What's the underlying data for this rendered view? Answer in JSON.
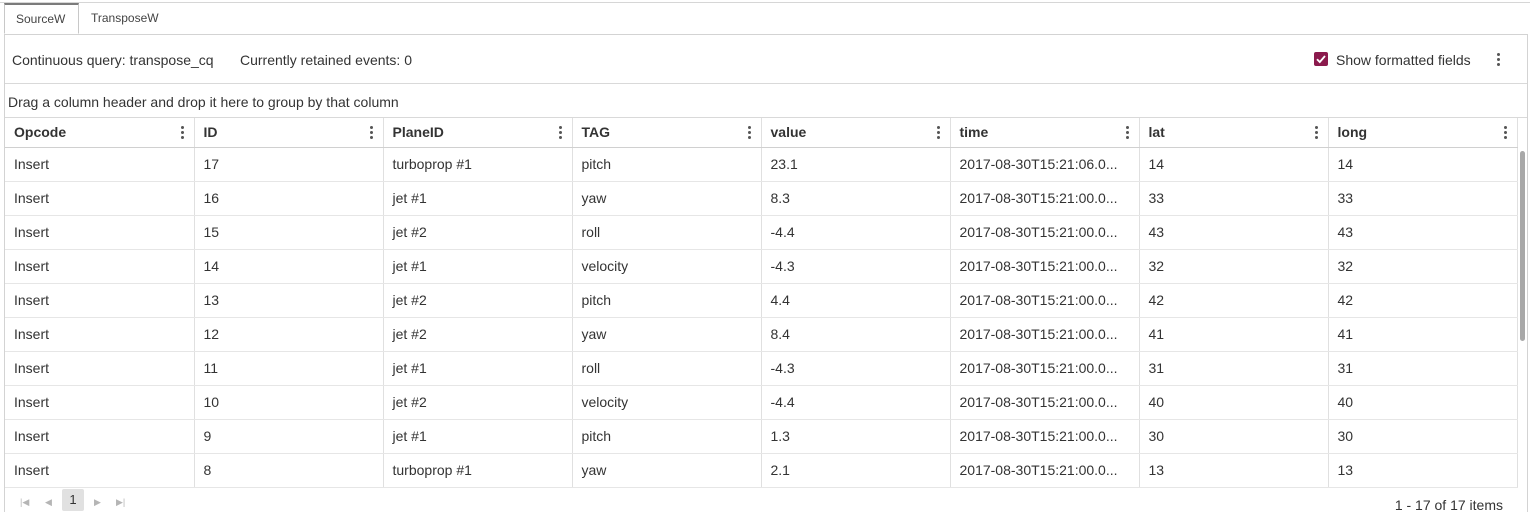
{
  "tabs": [
    {
      "label": "SourceW",
      "active": true
    },
    {
      "label": "TransposeW",
      "active": false
    }
  ],
  "toolbar": {
    "continuous_query": "Continuous query: transpose_cq",
    "retained_events": "Currently retained events: 0",
    "show_formatted_label": "Show formatted fields",
    "show_formatted_checked": true
  },
  "group_hint": "Drag a column header and drop it here to group by that column",
  "columns": [
    "Opcode",
    "ID",
    "PlaneID",
    "TAG",
    "value",
    "time",
    "lat",
    "long"
  ],
  "rows": [
    [
      "Insert",
      "17",
      "turboprop #1",
      "pitch",
      "23.1",
      "2017-08-30T15:21:06.0...",
      "14",
      "14"
    ],
    [
      "Insert",
      "16",
      "jet #1",
      "yaw",
      "8.3",
      "2017-08-30T15:21:00.0...",
      "33",
      "33"
    ],
    [
      "Insert",
      "15",
      "jet #2",
      "roll",
      "-4.4",
      "2017-08-30T15:21:00.0...",
      "43",
      "43"
    ],
    [
      "Insert",
      "14",
      "jet #1",
      "velocity",
      "-4.3",
      "2017-08-30T15:21:00.0...",
      "32",
      "32"
    ],
    [
      "Insert",
      "13",
      "jet #2",
      "pitch",
      "4.4",
      "2017-08-30T15:21:00.0...",
      "42",
      "42"
    ],
    [
      "Insert",
      "12",
      "jet #2",
      "yaw",
      "8.4",
      "2017-08-30T15:21:00.0...",
      "41",
      "41"
    ],
    [
      "Insert",
      "11",
      "jet #1",
      "roll",
      "-4.3",
      "2017-08-30T15:21:00.0...",
      "31",
      "31"
    ],
    [
      "Insert",
      "10",
      "jet #2",
      "velocity",
      "-4.4",
      "2017-08-30T15:21:00.0...",
      "40",
      "40"
    ],
    [
      "Insert",
      "9",
      "jet #1",
      "pitch",
      "1.3",
      "2017-08-30T15:21:00.0...",
      "30",
      "30"
    ],
    [
      "Insert",
      "8",
      "turboprop #1",
      "yaw",
      "2.1",
      "2017-08-30T15:21:00.0...",
      "13",
      "13"
    ]
  ],
  "pager": {
    "current_page": "1",
    "info": "1 - 17 of 17 items",
    "first_icon": "first-page-icon",
    "prev_icon": "prev-page-icon",
    "next_icon": "next-page-icon",
    "last_icon": "last-page-icon"
  },
  "colors": {
    "accent": "#8b1a4d"
  }
}
